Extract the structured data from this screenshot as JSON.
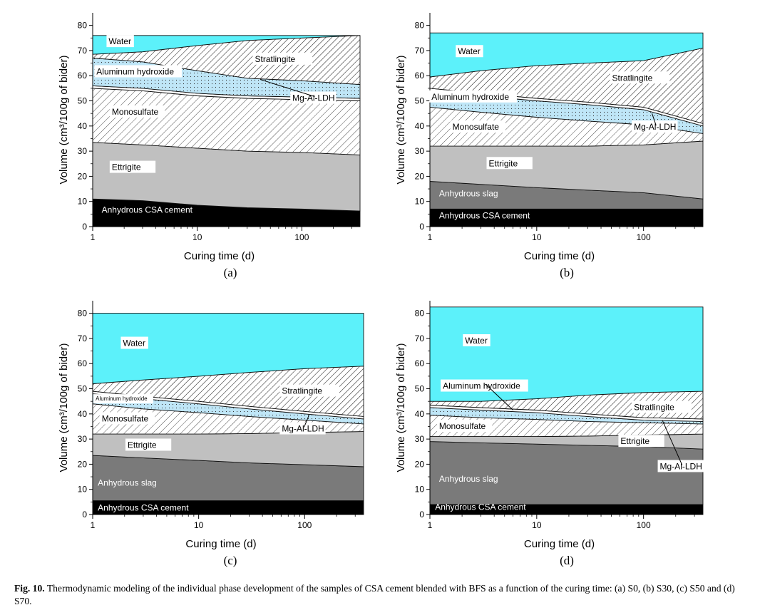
{
  "panels": [
    {
      "label": "(a)",
      "ylabel": "Volume (cm³/100g of bider)",
      "xlabel": "Curing time (d)",
      "yticks": [
        "0",
        "10",
        "20",
        "30",
        "40",
        "50",
        "60",
        "70",
        "80"
      ],
      "xticks": [
        "1",
        "10",
        "100"
      ],
      "layers": [
        {
          "name": "Anhydrous CSA cement",
          "fill": "#000000",
          "pattern": "solid",
          "x": [
            1,
            3,
            10,
            30,
            100,
            360
          ],
          "y": [
            11,
            10.3,
            8.5,
            7.5,
            7,
            6.2
          ]
        },
        {
          "name": "Ettrigite",
          "fill": "#c0c0c0",
          "pattern": "solid",
          "x": [
            1,
            3,
            10,
            30,
            100,
            360
          ],
          "y": [
            33.5,
            32.5,
            31.2,
            30,
            29.5,
            28.5
          ]
        },
        {
          "name": "Monosulfate",
          "fill": "#ffffff",
          "pattern": "hatch-light",
          "x": [
            1,
            3,
            10,
            30,
            100,
            360
          ],
          "y": [
            55,
            54,
            52,
            51,
            50.5,
            50
          ]
        },
        {
          "name": "Mg-Al-LDH",
          "fill": "#ffffff",
          "pattern": "solid",
          "x": [
            1,
            3,
            10,
            30,
            100,
            360
          ],
          "y": [
            56,
            55,
            53,
            52,
            51.5,
            51
          ]
        },
        {
          "name": "Aluminum hydroxide",
          "fill": "#bfe6f7",
          "pattern": "dots",
          "x": [
            1,
            3,
            10,
            30,
            100,
            360
          ],
          "y": [
            67,
            65.5,
            62,
            59,
            58,
            56.5
          ]
        },
        {
          "name": "Stratlingite",
          "fill": "#ffffff",
          "pattern": "hatch-dense",
          "x": [
            1,
            3,
            10,
            30,
            100,
            360
          ],
          "y": [
            68.5,
            69.5,
            72,
            74,
            75,
            76
          ]
        },
        {
          "name": "Water",
          "fill": "#5cf1fa",
          "pattern": "solid",
          "x": [
            1,
            3,
            10,
            30,
            100,
            360
          ],
          "y": [
            76,
            76,
            76,
            76,
            76,
            76
          ]
        }
      ],
      "labels": [
        {
          "text": "Water",
          "x": 1.4,
          "y": 72.5,
          "anchor": "start"
        },
        {
          "text": "Stratlingite",
          "x": 35,
          "y": 65.5,
          "anchor": "start"
        },
        {
          "text": "Aluminum hydroxide",
          "x": 1.07,
          "y": 60.5,
          "anchor": "start"
        },
        {
          "text": "Mg-Al-LDH",
          "x": 80,
          "y": 50,
          "anchor": "start",
          "arrow_to": {
            "x": 40,
            "y": 58.5
          }
        },
        {
          "text": "Monosulfate",
          "x": 1.5,
          "y": 44.5,
          "anchor": "start"
        },
        {
          "text": "Ettrigite",
          "x": 1.5,
          "y": 22.5,
          "anchor": "start"
        },
        {
          "text": "Anhydrous CSA cement",
          "x": 1.2,
          "y": 5.5,
          "anchor": "start",
          "color": "#ffffff"
        }
      ]
    },
    {
      "label": "(b)",
      "ylabel": "Volume (cm³/100g of bider)",
      "xlabel": "Curing time (d)",
      "yticks": [
        "0",
        "10",
        "20",
        "30",
        "40",
        "50",
        "60",
        "70",
        "80"
      ],
      "xticks": [
        "1",
        "10",
        "100"
      ],
      "layers": [
        {
          "name": "Anhydrous CSA cement",
          "fill": "#000000",
          "pattern": "solid",
          "x": [
            1,
            3,
            10,
            30,
            100,
            360
          ],
          "y": [
            7,
            7,
            7,
            7,
            7,
            7
          ]
        },
        {
          "name": "Anhydrous slag",
          "fill": "#7a7a7a",
          "pattern": "solid",
          "x": [
            1,
            3,
            10,
            30,
            100,
            360
          ],
          "y": [
            18,
            16.8,
            15.5,
            14.5,
            13.5,
            11
          ]
        },
        {
          "name": "Ettrigite",
          "fill": "#c0c0c0",
          "pattern": "solid",
          "x": [
            1,
            3,
            10,
            30,
            100,
            360
          ],
          "y": [
            32,
            32,
            32,
            32,
            32.5,
            34
          ]
        },
        {
          "name": "Monosulfate",
          "fill": "#ffffff",
          "pattern": "hatch-light",
          "x": [
            1,
            3,
            10,
            30,
            100,
            360
          ],
          "y": [
            47.5,
            45.5,
            43.5,
            42,
            40.5,
            37
          ]
        },
        {
          "name": "Aluminum hydroxide",
          "fill": "#bfe6f7",
          "pattern": "dots",
          "x": [
            1,
            3,
            10,
            30,
            100,
            360
          ],
          "y": [
            54,
            52,
            50,
            48.5,
            46.5,
            40
          ]
        },
        {
          "name": "Mg-Al-LDH",
          "fill": "#ffffff",
          "pattern": "solid",
          "x": [
            1,
            3,
            10,
            30,
            100,
            360
          ],
          "y": [
            55,
            53,
            51,
            49.5,
            47.5,
            41
          ]
        },
        {
          "name": "Stratlingite",
          "fill": "#ffffff",
          "pattern": "hatch-dense",
          "x": [
            1,
            3,
            10,
            30,
            100,
            360
          ],
          "y": [
            59.5,
            62,
            64,
            65,
            66,
            71
          ]
        },
        {
          "name": "Water",
          "fill": "#5cf1fa",
          "pattern": "solid",
          "x": [
            1,
            3,
            10,
            30,
            100,
            360
          ],
          "y": [
            77,
            77,
            77,
            77,
            77,
            77
          ]
        }
      ],
      "labels": [
        {
          "text": "Water",
          "x": 1.8,
          "y": 68.5,
          "anchor": "start"
        },
        {
          "text": "Stratlingite",
          "x": 50,
          "y": 58,
          "anchor": "start"
        },
        {
          "text": "Aluminum hydroxide",
          "x": 1.02,
          "y": 50.5,
          "anchor": "start"
        },
        {
          "text": "Mg-Al-LDH",
          "x": 80,
          "y": 38.5,
          "anchor": "start",
          "arrow_to": {
            "x": 120,
            "y": 45
          }
        },
        {
          "text": "Monosulfate",
          "x": 1.6,
          "y": 38.5,
          "anchor": "start"
        },
        {
          "text": "Ettrigite",
          "x": 3.5,
          "y": 24,
          "anchor": "start"
        },
        {
          "text": "Anhydrous slag",
          "x": 1.2,
          "y": 12,
          "anchor": "start",
          "color": "#ffffff"
        },
        {
          "text": "Anhydrous CSA cement",
          "x": 1.2,
          "y": 3.2,
          "anchor": "start",
          "color": "#ffffff"
        }
      ]
    },
    {
      "label": "(c)",
      "ylabel": "Volume (cm³/100g of bider)",
      "xlabel": "Curing time (d)",
      "yticks": [
        "0",
        "10",
        "20",
        "30",
        "40",
        "50",
        "60",
        "70",
        "80"
      ],
      "xticks": [
        "1",
        "10",
        "100"
      ],
      "layers": [
        {
          "name": "Anhydrous CSA cement",
          "fill": "#000000",
          "pattern": "solid",
          "x": [
            1,
            3,
            10,
            30,
            100,
            360
          ],
          "y": [
            5.5,
            5.5,
            5.5,
            5.5,
            5.5,
            5.5
          ]
        },
        {
          "name": "Anhydrous slag",
          "fill": "#7a7a7a",
          "pattern": "solid",
          "x": [
            1,
            3,
            10,
            30,
            100,
            360
          ],
          "y": [
            23.5,
            22.5,
            21.5,
            20.5,
            19.8,
            19
          ]
        },
        {
          "name": "Ettrigite",
          "fill": "#c0c0c0",
          "pattern": "solid",
          "x": [
            1,
            3,
            10,
            30,
            100,
            360
          ],
          "y": [
            32,
            32,
            32,
            32.2,
            32.6,
            33
          ]
        },
        {
          "name": "Monosulfate",
          "fill": "#ffffff",
          "pattern": "hatch-light",
          "x": [
            1,
            3,
            10,
            30,
            100,
            360
          ],
          "y": [
            44,
            42,
            40.5,
            39,
            37.5,
            36
          ]
        },
        {
          "name": "Aluminum hydroxide",
          "fill": "#bfe6f7",
          "pattern": "dots",
          "x": [
            1,
            3,
            10,
            30,
            100,
            360
          ],
          "y": [
            48,
            46,
            44,
            42,
            40,
            38
          ]
        },
        {
          "name": "Mg-Al-LDH",
          "fill": "#ffffff",
          "pattern": "solid",
          "x": [
            1,
            3,
            10,
            30,
            100,
            360
          ],
          "y": [
            49,
            47,
            45,
            43,
            41,
            39
          ]
        },
        {
          "name": "Stratlingite",
          "fill": "#ffffff",
          "pattern": "hatch-dense",
          "x": [
            1,
            3,
            10,
            30,
            100,
            360
          ],
          "y": [
            52,
            53.5,
            55,
            56.5,
            58,
            59
          ]
        },
        {
          "name": "Water",
          "fill": "#5cf1fa",
          "pattern": "solid",
          "x": [
            1,
            3,
            10,
            30,
            100,
            360
          ],
          "y": [
            80,
            80,
            80,
            80,
            80,
            80
          ]
        }
      ],
      "labels": [
        {
          "text": "Water",
          "x": 1.9,
          "y": 67,
          "anchor": "start"
        },
        {
          "text": "Stratlingite",
          "x": 60,
          "y": 48,
          "anchor": "start"
        },
        {
          "text": "Aluminum hydroxide",
          "x": 1.05,
          "y": 45.3,
          "anchor": "start",
          "small": true
        },
        {
          "text": "Mg-Al-LDH",
          "x": 60,
          "y": 33,
          "anchor": "start",
          "arrow_to": {
            "x": 110,
            "y": 39.5
          }
        },
        {
          "text": "Monosulfate",
          "x": 1.2,
          "y": 37,
          "anchor": "start"
        },
        {
          "text": "Ettrigite",
          "x": 2.1,
          "y": 26.5,
          "anchor": "start"
        },
        {
          "text": "Anhydrous slag",
          "x": 1.1,
          "y": 11.5,
          "anchor": "start",
          "color": "#ffffff"
        },
        {
          "text": "Anhydrous CSA cement",
          "x": 1.1,
          "y": 1.5,
          "anchor": "start",
          "color": "#ffffff"
        }
      ]
    },
    {
      "label": "(d)",
      "ylabel": "Volume (cm³/100g of bider)",
      "xlabel": "Curing time (d)",
      "yticks": [
        "0",
        "10",
        "20",
        "30",
        "40",
        "50",
        "60",
        "70",
        "80"
      ],
      "xticks": [
        "1",
        "10",
        "100"
      ],
      "layers": [
        {
          "name": "Anhydrous CSA cement",
          "fill": "#000000",
          "pattern": "solid",
          "x": [
            1,
            3,
            10,
            30,
            100,
            360
          ],
          "y": [
            4,
            4,
            4,
            4,
            4,
            4
          ]
        },
        {
          "name": "Anhydrous slag",
          "fill": "#7a7a7a",
          "pattern": "solid",
          "x": [
            1,
            3,
            10,
            30,
            100,
            360
          ],
          "y": [
            29,
            28.5,
            28,
            27.5,
            27,
            26
          ]
        },
        {
          "name": "Ettrigite",
          "fill": "#c0c0c0",
          "pattern": "solid",
          "x": [
            1,
            3,
            10,
            30,
            100,
            360
          ],
          "y": [
            31,
            31,
            31,
            31.2,
            31.6,
            32
          ]
        },
        {
          "name": "Monosulfate",
          "fill": "#ffffff",
          "pattern": "hatch-light",
          "x": [
            1,
            3,
            10,
            30,
            100,
            360
          ],
          "y": [
            39.5,
            38.5,
            37.8,
            37,
            36.5,
            36
          ]
        },
        {
          "name": "Aluminum hydroxide",
          "fill": "#bfe6f7",
          "pattern": "dots",
          "x": [
            1,
            3,
            10,
            30,
            100,
            360
          ],
          "y": [
            42.5,
            41.5,
            40.5,
            39,
            37.5,
            37
          ]
        },
        {
          "name": "Mg-Al-LDH",
          "fill": "#ffffff",
          "pattern": "solid",
          "x": [
            1,
            3,
            10,
            30,
            100,
            360
          ],
          "y": [
            43.5,
            42.5,
            41.5,
            40,
            38.5,
            38
          ]
        },
        {
          "name": "Stratlingite",
          "fill": "#ffffff",
          "pattern": "hatch-dense",
          "x": [
            1,
            3,
            10,
            30,
            100,
            360
          ],
          "y": [
            45,
            45,
            46,
            47.5,
            48.5,
            49
          ]
        },
        {
          "name": "Water",
          "fill": "#5cf1fa",
          "pattern": "solid",
          "x": [
            1,
            3,
            10,
            30,
            100,
            360
          ],
          "y": [
            82.5,
            82.5,
            82.5,
            82.5,
            82.5,
            82.5
          ]
        }
      ],
      "labels": [
        {
          "text": "Water",
          "x": 2.1,
          "y": 68,
          "anchor": "start"
        },
        {
          "text": "Aluminum hydroxide",
          "x": 1.3,
          "y": 50,
          "anchor": "start",
          "arrow_to": {
            "x": 6,
            "y": 41.5
          }
        },
        {
          "text": "Stratlingite",
          "x": 80,
          "y": 41.5,
          "anchor": "start"
        },
        {
          "text": "Monosulfate",
          "x": 1.2,
          "y": 34,
          "anchor": "start"
        },
        {
          "text": "Ettrigite",
          "x": 60,
          "y": 28,
          "anchor": "start"
        },
        {
          "text": "Mg-Al-LDH",
          "x": 140,
          "y": 18,
          "anchor": "start",
          "arrow_to": {
            "x": 150,
            "y": 37.5
          }
        },
        {
          "text": "Anhydrous slag",
          "x": 1.2,
          "y": 13,
          "anchor": "start",
          "color": "#ffffff"
        },
        {
          "text": "Anhydrous CSA cement",
          "x": 1.1,
          "y": 1.8,
          "anchor": "start",
          "color": "#ffffff"
        }
      ]
    }
  ],
  "chart_data": [
    {
      "type": "area",
      "ylabel": "Volume (cm³/100g of bider)",
      "xlabel": "Curing time (d)",
      "xscale": "log",
      "xlim": [
        1,
        360
      ],
      "ylim": [
        0,
        85
      ],
      "stack_tops": "see panels[0].layers"
    },
    {
      "type": "area",
      "ylabel": "Volume (cm³/100g of bider)",
      "xlabel": "Curing time (d)",
      "xscale": "log",
      "xlim": [
        1,
        360
      ],
      "ylim": [
        0,
        85
      ],
      "stack_tops": "see panels[1].layers"
    },
    {
      "type": "area",
      "ylabel": "Volume (cm³/100g of bider)",
      "xlabel": "Curing time (d)",
      "xscale": "log",
      "xlim": [
        1,
        360
      ],
      "ylim": [
        0,
        85
      ],
      "stack_tops": "see panels[2].layers"
    },
    {
      "type": "area",
      "ylabel": "Volume (cm³/100g of bider)",
      "xlabel": "Curing time (d)",
      "xscale": "log",
      "xlim": [
        1,
        360
      ],
      "ylim": [
        0,
        85
      ],
      "stack_tops": "see panels[3].layers"
    }
  ],
  "caption": {
    "lead": "Fig. 10.",
    "text": "Thermodynamic modeling of the individual phase development of the samples of CSA cement blended with BFS as a function of the curing time: (a) S0, (b) S30, (c) S50 and (d) S70."
  }
}
